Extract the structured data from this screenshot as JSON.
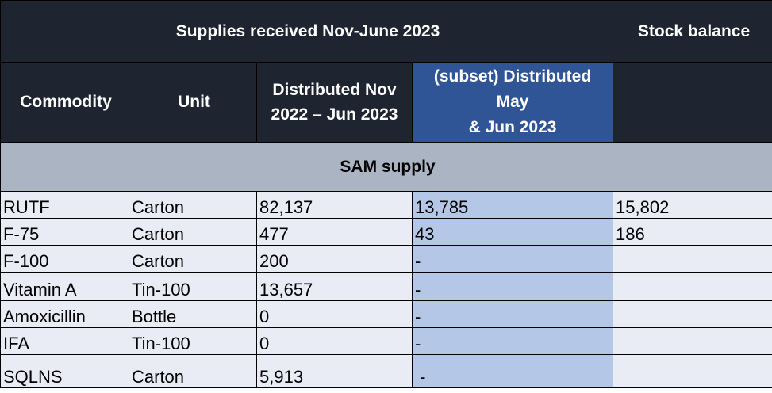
{
  "header": {
    "title": "Supplies received Nov-June 2023",
    "stock_balance": "Stock balance",
    "commodity": "Commodity",
    "unit": "Unit",
    "distributed_lines": [
      "Distributed Nov",
      "2022 – Jun 2023"
    ],
    "subset_lines": [
      "(subset) Distributed",
      "May",
      "& Jun 2023"
    ]
  },
  "section": {
    "label": "SAM supply"
  },
  "rows": [
    {
      "commodity": "RUTF",
      "unit": "Carton",
      "distributed": "82,137",
      "subset": "13,785",
      "balance": "15,802"
    },
    {
      "commodity": "F-75",
      "unit": "Carton",
      "distributed": "477",
      "subset": "43",
      "balance": "186"
    },
    {
      "commodity": "F-100",
      "unit": "Carton",
      "distributed": "200",
      "subset": "-",
      "balance": ""
    },
    {
      "commodity": "Vitamin A",
      "unit": "Tin-100",
      "distributed": "13,657",
      "subset": "-",
      "balance": ""
    },
    {
      "commodity": "Amoxicillin",
      "unit": "Bottle",
      "distributed": "0",
      "subset": "-",
      "balance": ""
    },
    {
      "commodity": "IFA",
      "unit": "Tin-100",
      "distributed": "0",
      "subset": "-",
      "balance": ""
    },
    {
      "commodity": "SQLNS",
      "unit": "Carton",
      "distributed": "5,913",
      "subset": " -",
      "balance": ""
    }
  ],
  "colors": {
    "header_bg": "#1e2430",
    "subset_header_bg": "#2f5597",
    "section_bg": "#aab4c3",
    "row_bg": "#e9ebf5",
    "subset_col_bg": "#b4c7e7"
  }
}
